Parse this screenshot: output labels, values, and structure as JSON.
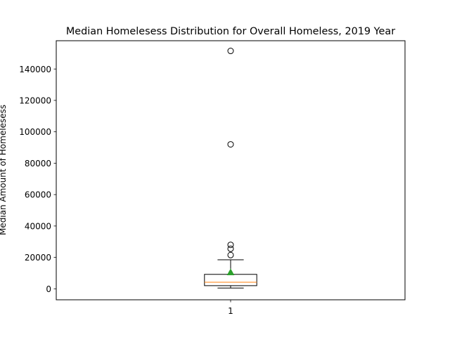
{
  "chart_data": {
    "type": "box",
    "title": "Median Homelesess Distribution for Overall Homeless, 2019 Year",
    "xlabel": "",
    "ylabel": "Median Amount of  Homelesess",
    "categories": [
      "1"
    ],
    "ylim": [
      -7000,
      158000
    ],
    "yticks": [
      0,
      20000,
      40000,
      60000,
      80000,
      100000,
      120000,
      140000
    ],
    "ytick_labels": [
      "0",
      "20000",
      "40000",
      "60000",
      "80000",
      "100000",
      "120000",
      "140000"
    ],
    "grid": false,
    "boxes": [
      {
        "category": "1",
        "whisker_low": 500,
        "q1": 2000,
        "median": 4200,
        "q3": 9200,
        "whisker_high": 18500,
        "mean": 10500,
        "outliers": [
          21500,
          25500,
          28000,
          92000,
          151500
        ]
      }
    ],
    "colors": {
      "box": "#000000",
      "median": "#ff7f0e",
      "mean": "#2ca02c",
      "outlier": "#000000"
    }
  }
}
